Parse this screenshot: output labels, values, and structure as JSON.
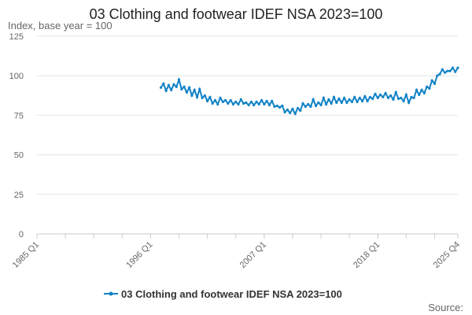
{
  "chart_data": {
    "type": "line",
    "title": "03 Clothing and footwear IDEF NSA 2023=100",
    "ylabel": "Index, base year = 100",
    "ylim": [
      0,
      125
    ],
    "yticks": [
      0,
      25,
      50,
      75,
      100,
      125
    ],
    "xlim": [
      "1985 Q1",
      "2025 Q4"
    ],
    "xtick_labels": [
      "1985 Q1",
      "1996 Q1",
      "2007 Q1",
      "2018 Q1",
      "2025 Q4"
    ],
    "grid": true,
    "legend": "bottom",
    "source_label": "Source:",
    "color": "#0f82c5",
    "series": [
      {
        "name": "03 Clothing and footwear IDEF NSA 2023=100",
        "start": "1997 Q1",
        "values": [
          92.5,
          95,
          90.5,
          94,
          91,
          94.5,
          93,
          97.5,
          91.5,
          93,
          89.5,
          92.5,
          87.5,
          91,
          86.5,
          91.5,
          86,
          87.5,
          84,
          86.5,
          82.5,
          84.5,
          82,
          86,
          83.5,
          84.5,
          82.5,
          84.5,
          82,
          83.5,
          82,
          85,
          82.5,
          83,
          81.5,
          83.5,
          81.5,
          83.5,
          82,
          84.5,
          82,
          84,
          81.5,
          84,
          80.5,
          81,
          80,
          81,
          77,
          78.5,
          76.5,
          79,
          76,
          79.5,
          78,
          82.5,
          80.5,
          82,
          80.5,
          85,
          81,
          83,
          81.5,
          86,
          82,
          85,
          82.5,
          86.5,
          83,
          85.5,
          83,
          86,
          83,
          85,
          83.5,
          86.5,
          83.5,
          86,
          84,
          87,
          84,
          86.5,
          85.5,
          88.5,
          86,
          88,
          86.5,
          89,
          86,
          87.5,
          85,
          89.5,
          85.5,
          86,
          84,
          88,
          83,
          86.5,
          86,
          91,
          88,
          91,
          89,
          93,
          92,
          97,
          95,
          100,
          101,
          104,
          102,
          103,
          103,
          105,
          102.5,
          105
        ]
      }
    ]
  }
}
